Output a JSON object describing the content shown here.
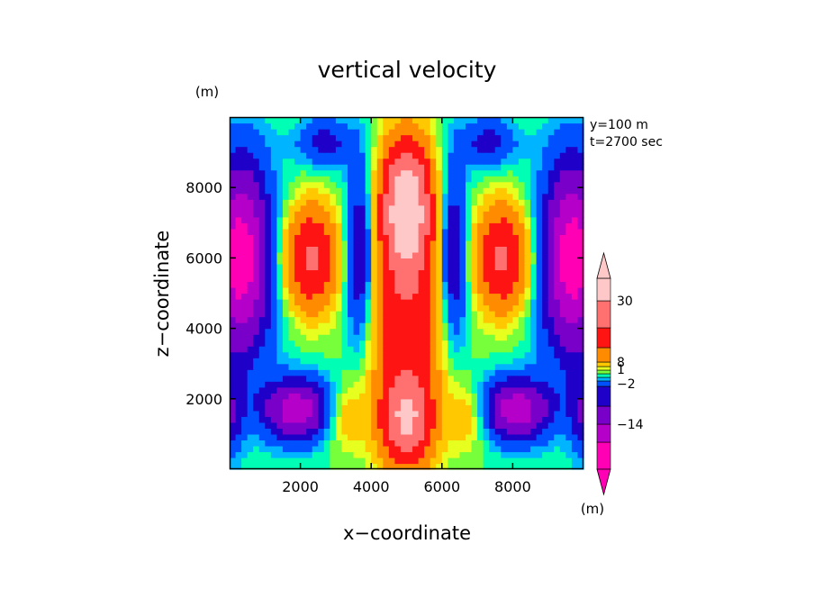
{
  "chart_data": {
    "type": "heatmap",
    "title": "vertical velocity",
    "xlabel": "x−coordinate",
    "ylabel": "z−coordinate",
    "x_unit": "(m)",
    "y_unit": "(m)",
    "xlim": [
      0,
      10000
    ],
    "ylim": [
      0,
      10000
    ],
    "xticks": [
      2000,
      4000,
      6000,
      8000
    ],
    "yticks": [
      2000,
      4000,
      6000,
      8000
    ],
    "xtick_labels": [
      "2000",
      "4000",
      "6000",
      "8000"
    ],
    "ytick_labels": [
      "2000",
      "4000",
      "6000",
      "8000"
    ],
    "info_lines": [
      "y=100  m",
      "t=2700  sec"
    ],
    "colorbar": {
      "labels": [
        "30",
        "8",
        "1",
        "−2",
        "−14"
      ],
      "unit": "(m)",
      "colors": [
        "#ff00b4",
        "#b400c8",
        "#7800c8",
        "#1e00c8",
        "#0050ff",
        "#00b4ff",
        "#00ffb4",
        "#78ff3c",
        "#e6ff1e",
        "#ffc800",
        "#ff8c00",
        "#ff1414",
        "#ff7070",
        "#ffc8c8"
      ]
    },
    "grid": false,
    "legend": "colorbar-right",
    "features": [
      {
        "type": "updraft",
        "x": 5000,
        "z": 5000,
        "w_max": 30
      },
      {
        "type": "downdraft",
        "x": 300,
        "z": 6000,
        "w_min": -14
      },
      {
        "type": "downdraft",
        "x": 9700,
        "z": 6000,
        "w_min": -14
      },
      {
        "type": "updraft",
        "x": 2300,
        "z": 6000,
        "w_max": 15
      },
      {
        "type": "updraft",
        "x": 7700,
        "z": 6000,
        "w_max": 15
      }
    ]
  }
}
